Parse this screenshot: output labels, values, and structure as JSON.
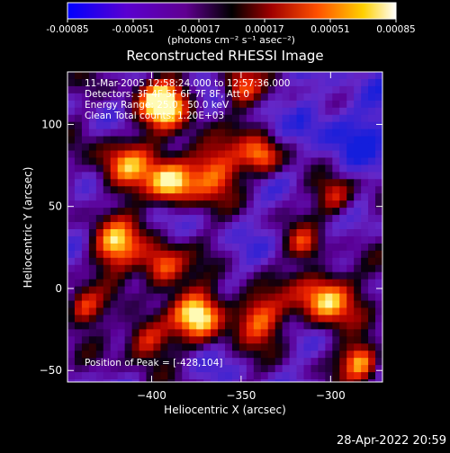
{
  "colorbar": {
    "tick_labels": [
      "-0.00085",
      "-0.00051",
      "-0.00017",
      "0.00017",
      "0.00051",
      "0.00085"
    ],
    "tick_values": [
      -0.00085,
      -0.00051,
      -0.00017,
      0.00017,
      0.00051,
      0.00085
    ],
    "range": [
      -0.00085,
      0.00085
    ],
    "units": "(photons cm⁻² s⁻¹ asec⁻²)",
    "colors": [
      "#0000ff",
      "#7000c0",
      "#000000",
      "#b00000",
      "#ff6000",
      "#ffe000",
      "#ffffff"
    ]
  },
  "chart_data": {
    "type": "heatmap",
    "title": "Reconstructed RHESSI Image",
    "xlabel": "Heliocentric X (arcsec)",
    "ylabel": "Heliocentric Y (arcsec)",
    "xlim": [
      -447,
      -271
    ],
    "ylim": [
      -57,
      132
    ],
    "x_ticks": [
      -400,
      -350,
      -300
    ],
    "x_tick_labels": [
      "−400",
      "−350",
      "−300"
    ],
    "y_ticks": [
      -50,
      0,
      50,
      100
    ],
    "y_tick_labels": [
      "−50",
      "0",
      "50",
      "100"
    ],
    "peak": {
      "x": -428,
      "y": 104
    },
    "annotations": {
      "time_range": "11-Mar-2005 12:58:24.000 to 12:57:36.000",
      "detectors": "Detectors: 3F 4F 5F 6F 7F 8F, Att 0",
      "energy_range": "Energy Range: 25.0 - 50.0 keV",
      "method": "Clean     Total counts: 1.20E+03",
      "peak_position": "Position of Peak = [-428,104]"
    }
  },
  "footer": {
    "timestamp": "28-Apr-2022 20:59"
  }
}
